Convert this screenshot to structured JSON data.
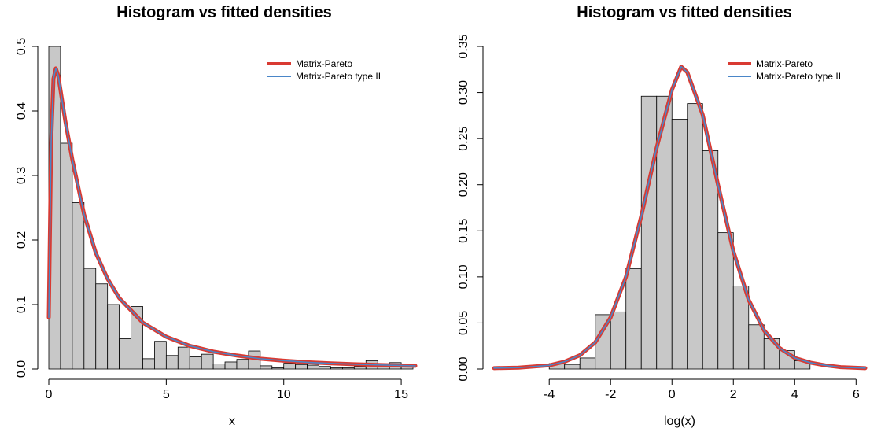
{
  "chart_data": [
    {
      "type": "histogram",
      "title": "Histogram vs fitted densities",
      "xlabel": "x",
      "ylabel": "",
      "xlim": [
        0,
        15.6
      ],
      "ylim": [
        0,
        0.5
      ],
      "x_ticks": [
        0,
        5,
        10,
        15
      ],
      "y_ticks": [
        0.0,
        0.1,
        0.2,
        0.3,
        0.4,
        0.5
      ],
      "x_tick_labels": [
        "0",
        "5",
        "10",
        "15"
      ],
      "y_tick_labels": [
        "0.0",
        "0.1",
        "0.2",
        "0.3",
        "0.4",
        "0.5"
      ],
      "bin_width": 0.5,
      "bin_start": 0,
      "bar_color": "#c8c8c8",
      "bar_values": [
        0.5,
        0.35,
        0.258,
        0.156,
        0.132,
        0.1,
        0.047,
        0.097,
        0.016,
        0.043,
        0.021,
        0.034,
        0.019,
        0.023,
        0.008,
        0.011,
        0.015,
        0.028,
        0.005,
        0.002,
        0.009,
        0.007,
        0.006,
        0.004,
        0.002,
        0.002,
        0.004,
        0.013,
        0.004,
        0.01,
        0.005
      ],
      "series": [
        {
          "name": "Matrix-Pareto",
          "color": "#d93a32",
          "x": [
            0.0,
            0.1,
            0.2,
            0.3,
            0.4,
            0.5,
            0.7,
            1.0,
            1.5,
            2.0,
            2.5,
            3.0,
            4.0,
            5.0,
            6.0,
            7.0,
            8.0,
            9.0,
            10.0,
            11.0,
            12.0,
            13.0,
            14.0,
            15.0,
            15.6
          ],
          "y": [
            0.08,
            0.35,
            0.45,
            0.466,
            0.455,
            0.432,
            0.385,
            0.325,
            0.24,
            0.18,
            0.14,
            0.11,
            0.072,
            0.05,
            0.036,
            0.027,
            0.021,
            0.016,
            0.013,
            0.0105,
            0.0088,
            0.0075,
            0.0064,
            0.0055,
            0.005
          ]
        },
        {
          "name": "Matrix-Pareto type II",
          "color": "#4a86c8",
          "x": [
            0.0,
            0.1,
            0.2,
            0.3,
            0.4,
            0.5,
            0.7,
            1.0,
            1.5,
            2.0,
            2.5,
            3.0,
            4.0,
            5.0,
            6.0,
            7.0,
            8.0,
            9.0,
            10.0,
            11.0,
            12.0,
            13.0,
            14.0,
            15.0,
            15.6
          ],
          "y": [
            0.08,
            0.35,
            0.45,
            0.466,
            0.455,
            0.432,
            0.385,
            0.325,
            0.24,
            0.18,
            0.14,
            0.11,
            0.072,
            0.05,
            0.036,
            0.027,
            0.021,
            0.016,
            0.013,
            0.0105,
            0.0088,
            0.0075,
            0.0064,
            0.0055,
            0.005
          ]
        }
      ],
      "legend": [
        "Matrix-Pareto",
        "Matrix-Pareto type II"
      ],
      "legend_position": "top-right",
      "grid": false
    },
    {
      "type": "histogram",
      "title": "Histogram vs fitted densities",
      "xlabel": "log(x)",
      "ylabel": "",
      "xlim": [
        -5.8,
        6.3
      ],
      "ylim": [
        0,
        0.35
      ],
      "x_ticks": [
        -4,
        -2,
        0,
        2,
        4,
        6
      ],
      "y_ticks": [
        0.0,
        0.05,
        0.1,
        0.15,
        0.2,
        0.25,
        0.3,
        0.35
      ],
      "x_tick_labels": [
        "-4",
        "-2",
        "0",
        "2",
        "4",
        "6"
      ],
      "y_tick_labels": [
        "0.00",
        "0.05",
        "0.10",
        "0.15",
        "0.20",
        "0.25",
        "0.30",
        "0.35"
      ],
      "bin_width": 0.5,
      "bin_start": -4.0,
      "bar_color": "#c8c8c8",
      "bar_values": [
        0.006,
        0.005,
        0.012,
        0.059,
        0.062,
        0.109,
        0.296,
        0.296,
        0.271,
        0.288,
        0.237,
        0.148,
        0.09,
        0.048,
        0.033,
        0.02,
        0.009
      ],
      "series": [
        {
          "name": "Matrix-Pareto",
          "color": "#d93a32",
          "x": [
            -5.8,
            -5.0,
            -4.0,
            -3.5,
            -3.0,
            -2.5,
            -2.0,
            -1.5,
            -1.0,
            -0.5,
            0.0,
            0.3,
            0.5,
            1.0,
            1.5,
            2.0,
            2.5,
            3.0,
            3.5,
            4.0,
            4.5,
            5.0,
            5.5,
            6.3
          ],
          "y": [
            0.001,
            0.0015,
            0.004,
            0.008,
            0.015,
            0.029,
            0.056,
            0.1,
            0.166,
            0.24,
            0.303,
            0.328,
            0.322,
            0.276,
            0.2,
            0.128,
            0.075,
            0.042,
            0.023,
            0.012,
            0.007,
            0.004,
            0.002,
            0.001
          ]
        },
        {
          "name": "Matrix-Pareto type II",
          "color": "#4a86c8",
          "x": [
            -5.8,
            -5.0,
            -4.0,
            -3.5,
            -3.0,
            -2.5,
            -2.0,
            -1.5,
            -1.0,
            -0.5,
            0.0,
            0.3,
            0.5,
            1.0,
            1.5,
            2.0,
            2.5,
            3.0,
            3.5,
            4.0,
            4.5,
            5.0,
            5.5,
            6.3
          ],
          "y": [
            0.001,
            0.0015,
            0.004,
            0.008,
            0.015,
            0.029,
            0.056,
            0.1,
            0.166,
            0.24,
            0.303,
            0.328,
            0.322,
            0.276,
            0.2,
            0.128,
            0.075,
            0.042,
            0.023,
            0.012,
            0.007,
            0.004,
            0.002,
            0.001
          ]
        }
      ],
      "legend": [
        "Matrix-Pareto",
        "Matrix-Pareto type II"
      ],
      "legend_position": "top-right",
      "grid": false
    }
  ]
}
